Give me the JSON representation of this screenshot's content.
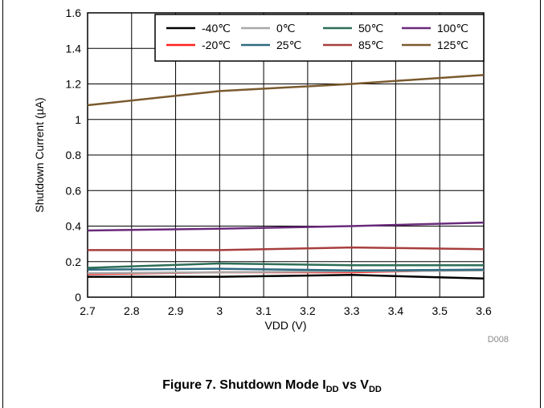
{
  "chart_data": {
    "type": "line",
    "xlabel": "VDD (V)",
    "ylabel": "Shutdown Current (µA)",
    "xlim": [
      2.7,
      3.6
    ],
    "ylim": [
      0,
      1.6
    ],
    "x_ticks": [
      "2.7",
      "2.8",
      "2.9",
      "3",
      "3.1",
      "3.2",
      "3.3",
      "3.4",
      "3.5",
      "3.6"
    ],
    "y_ticks": [
      "0",
      "0.2",
      "0.4",
      "0.6",
      "0.8",
      "1",
      "1.2",
      "1.4",
      "1.6"
    ],
    "grid": true,
    "legend_position": "top-right",
    "x": [
      2.7,
      3.0,
      3.3,
      3.6
    ],
    "series": [
      {
        "name": "-40℃",
        "color": "#000000",
        "values": [
          0.115,
          0.115,
          0.125,
          0.105
        ]
      },
      {
        "name": "-20℃",
        "color": "#ff2020",
        "values": [
          0.13,
          0.14,
          0.14,
          0.155
        ]
      },
      {
        "name": "0℃",
        "color": "#a8a8a8",
        "values": [
          0.135,
          0.14,
          0.145,
          0.15
        ]
      },
      {
        "name": "25℃",
        "color": "#2e6a80",
        "values": [
          0.155,
          0.16,
          0.15,
          0.155
        ]
      },
      {
        "name": "50℃",
        "color": "#2e6e57",
        "values": [
          0.165,
          0.19,
          0.18,
          0.18
        ]
      },
      {
        "name": "85℃",
        "color": "#a83e3e",
        "values": [
          0.265,
          0.265,
          0.28,
          0.27
        ]
      },
      {
        "name": "100℃",
        "color": "#6a2a7a",
        "values": [
          0.375,
          0.385,
          0.4,
          0.42
        ]
      },
      {
        "name": "125℃",
        "color": "#7a5a2e",
        "values": [
          1.08,
          1.16,
          1.2,
          1.25
        ]
      }
    ],
    "annotation": "D008"
  },
  "caption": {
    "prefix": "Figure 7. Shutdown Mode I",
    "sub1": "DD",
    "middle": " vs V",
    "sub2": "DD"
  }
}
